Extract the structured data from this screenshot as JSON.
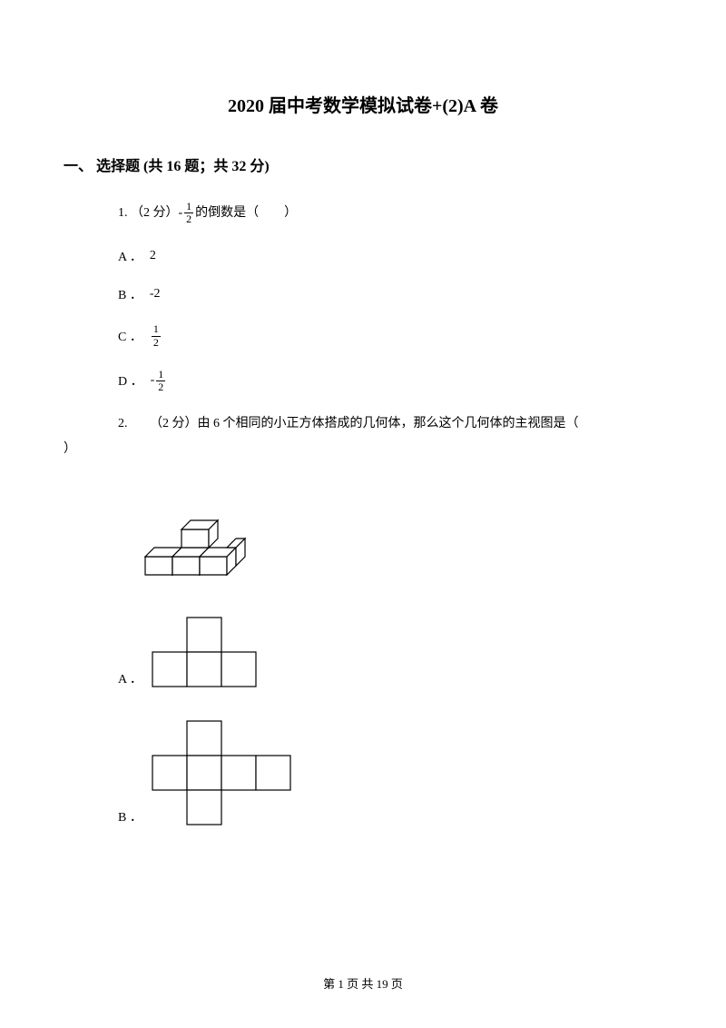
{
  "title": "2020 届中考数学模拟试卷+(2)A 卷",
  "section": "一、 选择题 (共 16 题；共 32 分)",
  "q1": {
    "text_before": "1. （2 分）-",
    "text_after": "的倒数是（　　）",
    "frac_num": "1",
    "frac_den": "2",
    "options": {
      "A": {
        "label": "A ．",
        "value": "2"
      },
      "B": {
        "label": "B ．",
        "value": "-2"
      },
      "C": {
        "label": "C ．",
        "num": "1",
        "den": "2",
        "neg": ""
      },
      "D": {
        "label": "D ．",
        "num": "1",
        "den": "2",
        "neg": "-"
      }
    }
  },
  "q2": {
    "text": "2. 　　（2 分）由 6 个相同的小正方体搭成的几何体，那么这个几何体的主视图是（",
    "paren_close": "）",
    "options": {
      "A": "A ．",
      "B": "B ．"
    }
  },
  "figures": {
    "cube3d": {
      "stroke": "#000000",
      "fill": "#ffffff",
      "width": 150,
      "height": 90
    },
    "optA": {
      "stroke": "#000000",
      "fill": "#ffffff",
      "cell_size": 38,
      "grid": [
        [
          0,
          1,
          0
        ],
        [
          1,
          1,
          1
        ]
      ]
    },
    "optB": {
      "stroke": "#000000",
      "fill": "#ffffff",
      "cell_size": 38,
      "grid": [
        [
          0,
          1,
          0,
          0
        ],
        [
          1,
          1,
          1,
          1
        ],
        [
          0,
          1,
          0,
          0
        ]
      ]
    }
  },
  "footer": "第 1 页 共 19 页"
}
